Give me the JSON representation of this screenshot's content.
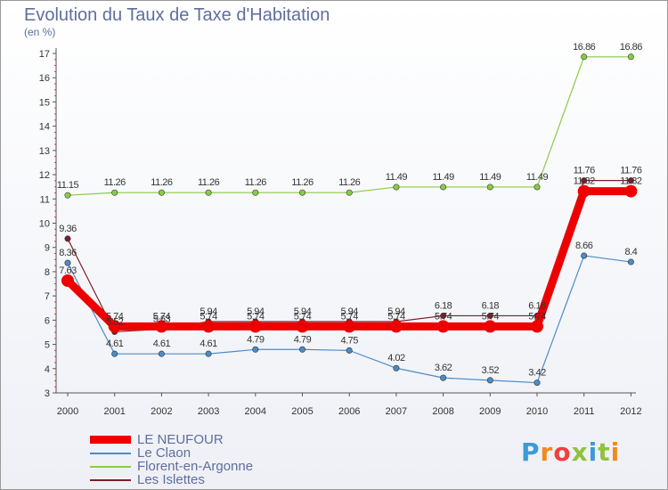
{
  "title": "Evolution du Taux de Taxe d'Habitation",
  "unit_label": "(en %)",
  "brand_logo": "Proxiti",
  "chart_data": {
    "type": "line",
    "title": "Evolution du Taux de Taxe d'Habitation",
    "ylabel": "(en %)",
    "xlabel": "",
    "x": [
      "2000",
      "2001",
      "2002",
      "2003",
      "2004",
      "2005",
      "2006",
      "2007",
      "2008",
      "2009",
      "2010",
      "2011",
      "2012"
    ],
    "ylim": [
      3,
      17
    ],
    "yticks": [
      3,
      4,
      5,
      6,
      7,
      8,
      9,
      10,
      11,
      12,
      13,
      14,
      15,
      16,
      17
    ],
    "grid": false,
    "legend_position": "bottom-left",
    "series": [
      {
        "name": "LE NEUFOUR",
        "color": "#ee0000",
        "values": [
          7.63,
          5.74,
          5.74,
          5.74,
          5.74,
          5.74,
          5.74,
          5.74,
          5.74,
          5.74,
          5.74,
          11.32,
          11.32
        ],
        "labels": [
          "7.63",
          "5.74",
          "5.74",
          "5.74",
          "5.74",
          "5.74",
          "5.74",
          "5.74",
          "5.74",
          "5.74",
          "5.74",
          "11.32",
          "11.32"
        ]
      },
      {
        "name": "Le Claon",
        "color": "#4b8cc8",
        "values": [
          8.36,
          4.61,
          4.61,
          4.61,
          4.79,
          4.79,
          4.75,
          4.02,
          3.62,
          3.52,
          3.42,
          8.66,
          8.4
        ],
        "labels": [
          "8.36",
          "4.61",
          "4.61",
          "4.61",
          "4.79",
          "4.79",
          "4.75",
          "4.02",
          "3.62",
          "3.52",
          "3.42",
          "8.66",
          "8.4"
        ]
      },
      {
        "name": "Florent-en-Argonne",
        "color": "#88cc44",
        "values": [
          11.15,
          11.26,
          11.26,
          11.26,
          11.26,
          11.26,
          11.26,
          11.49,
          11.49,
          11.49,
          11.49,
          16.86,
          16.86
        ],
        "labels": [
          "11.15",
          "11.26",
          "11.26",
          "11.26",
          "11.26",
          "11.26",
          "11.26",
          "11.49",
          "11.49",
          "11.49",
          "11.49",
          "16.86",
          "16.86"
        ]
      },
      {
        "name": "Les Islettes",
        "color": "#7a1f2a",
        "values": [
          9.36,
          5.52,
          5.63,
          5.94,
          5.94,
          5.94,
          5.94,
          5.94,
          6.18,
          6.18,
          6.18,
          11.76,
          11.76
        ],
        "labels": [
          "9.36",
          "5.52",
          "5.63",
          "5.94",
          "5.94",
          "5.94",
          "5.94",
          "5.94",
          "6.18",
          "6.18",
          "6.18",
          "11.76",
          "11.76"
        ]
      }
    ]
  },
  "logo_colors": [
    "#3d9ad6",
    "#f08b1e",
    "#ef3f3f",
    "#8fc33d",
    "#3d9ad6",
    "#8fc33d",
    "#f08b1e"
  ]
}
